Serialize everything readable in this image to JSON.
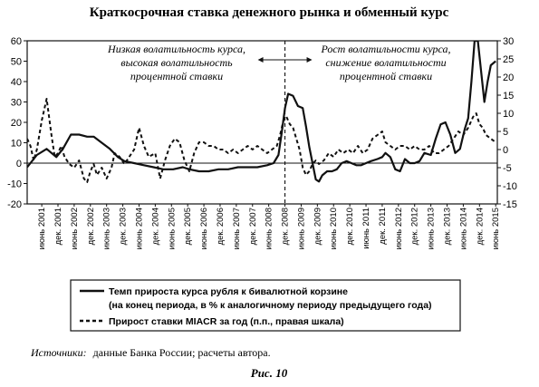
{
  "chart_data": {
    "type": "line",
    "title": "Краткосрочная ставка денежного рынка и обменный курс",
    "y_left": {
      "range": [
        -20,
        60
      ],
      "ticks": [
        "60",
        "50",
        "40",
        "30",
        "20",
        "10",
        "0",
        "-10",
        "-20"
      ]
    },
    "y_right": {
      "range": [
        -15,
        30
      ],
      "ticks": [
        "30",
        "25",
        "20",
        "15",
        "10",
        "5",
        "0",
        "-5",
        "-10",
        "-15"
      ]
    },
    "x_axis": {
      "start": 2001.0,
      "end": 2015.5,
      "tick_labels": [
        "июнь 2001",
        "дек. 2001",
        "июнь 2002",
        "дек. 2002",
        "июнь 2003",
        "дек. 2003",
        "июнь 2004",
        "дек. 2004",
        "июнь 2005",
        "дек. 2005",
        "июнь 2006",
        "дек. 2006",
        "июнь 2007",
        "дек. 2007",
        "июнь 2008",
        "дек. 2008",
        "июнь 2009",
        "дек. 2009",
        "июнь 2010",
        "дек. 2010",
        "июнь 2011",
        "дек. 2011",
        "июнь 2012",
        "дек. 2012",
        "июнь 2013",
        "дек. 2013",
        "июнь 2014",
        "дек. 2014",
        "июнь 2015"
      ]
    },
    "annotations": {
      "left": [
        "Низкая волатильность курса,",
        "высокая волатильность",
        "процентной ставки"
      ],
      "right": [
        "Рост волатильности курса,",
        "снижение волатильности",
        "процентной ставки"
      ],
      "divider_x": 2008.95
    },
    "series": [
      {
        "name_lines": [
          "Темп прироста курса рубля к бивалютной корзине",
          "(на конец периода, в % к аналогичному периоду предыдущего года)"
        ],
        "axis": "left",
        "style": "solid",
        "points": [
          [
            2001.0,
            -2
          ],
          [
            2001.3,
            4
          ],
          [
            2001.6,
            7
          ],
          [
            2001.9,
            3
          ],
          [
            2002.1,
            7
          ],
          [
            2002.35,
            14
          ],
          [
            2002.6,
            14
          ],
          [
            2002.85,
            13
          ],
          [
            2003.05,
            13
          ],
          [
            2003.3,
            10
          ],
          [
            2003.55,
            7
          ],
          [
            2003.8,
            3
          ],
          [
            2004.0,
            1
          ],
          [
            2004.3,
            0
          ],
          [
            2004.6,
            -1
          ],
          [
            2004.9,
            -2
          ],
          [
            2005.2,
            -3
          ],
          [
            2005.5,
            -3
          ],
          [
            2005.8,
            -2
          ],
          [
            2006.0,
            -3
          ],
          [
            2006.3,
            -4
          ],
          [
            2006.6,
            -4
          ],
          [
            2006.9,
            -3
          ],
          [
            2007.2,
            -3
          ],
          [
            2007.5,
            -2
          ],
          [
            2007.8,
            -2
          ],
          [
            2008.1,
            -2
          ],
          [
            2008.4,
            -1
          ],
          [
            2008.6,
            0
          ],
          [
            2008.75,
            4
          ],
          [
            2008.85,
            15
          ],
          [
            2008.95,
            27
          ],
          [
            2009.05,
            34
          ],
          [
            2009.2,
            33
          ],
          [
            2009.35,
            28
          ],
          [
            2009.5,
            27
          ],
          [
            2009.6,
            18
          ],
          [
            2009.7,
            8
          ],
          [
            2009.8,
            0
          ],
          [
            2009.9,
            -8
          ],
          [
            2010.0,
            -9
          ],
          [
            2010.1,
            -6
          ],
          [
            2010.25,
            -4
          ],
          [
            2010.4,
            -4
          ],
          [
            2010.55,
            -3
          ],
          [
            2010.7,
            0
          ],
          [
            2010.85,
            1
          ],
          [
            2011.0,
            0
          ],
          [
            2011.15,
            -1
          ],
          [
            2011.3,
            -1
          ],
          [
            2011.45,
            0
          ],
          [
            2011.6,
            1
          ],
          [
            2011.8,
            2
          ],
          [
            2011.95,
            3
          ],
          [
            2012.05,
            5
          ],
          [
            2012.2,
            3
          ],
          [
            2012.35,
            -3
          ],
          [
            2012.5,
            -4
          ],
          [
            2012.65,
            2
          ],
          [
            2012.8,
            0
          ],
          [
            2012.95,
            0
          ],
          [
            2013.1,
            1
          ],
          [
            2013.25,
            5
          ],
          [
            2013.45,
            4
          ],
          [
            2013.6,
            12
          ],
          [
            2013.75,
            19
          ],
          [
            2013.9,
            20
          ],
          [
            2014.05,
            14
          ],
          [
            2014.2,
            5
          ],
          [
            2014.35,
            7
          ],
          [
            2014.5,
            17
          ],
          [
            2014.6,
            22
          ],
          [
            2014.7,
            40
          ],
          [
            2014.8,
            60
          ],
          [
            2014.9,
            60
          ],
          [
            2015.0,
            45
          ],
          [
            2015.1,
            30
          ],
          [
            2015.2,
            40
          ],
          [
            2015.3,
            48
          ],
          [
            2015.45,
            50
          ]
        ]
      },
      {
        "name": "Прирост ставки MIACR за год (п.п., правая шкала)",
        "axis": "right",
        "style": "dashed",
        "points": [
          [
            2001.0,
            3
          ],
          [
            2001.1,
            1
          ],
          [
            2001.2,
            -3
          ],
          [
            2001.3,
            0
          ],
          [
            2001.45,
            8
          ],
          [
            2001.6,
            14
          ],
          [
            2001.75,
            4
          ],
          [
            2001.85,
            -2
          ],
          [
            2001.95,
            -1
          ],
          [
            2002.05,
            1
          ],
          [
            2002.15,
            -2
          ],
          [
            2002.3,
            -4
          ],
          [
            2002.45,
            -5
          ],
          [
            2002.6,
            -3
          ],
          [
            2002.75,
            -8
          ],
          [
            2002.85,
            -9
          ],
          [
            2002.95,
            -6
          ],
          [
            2003.05,
            -4
          ],
          [
            2003.15,
            -7
          ],
          [
            2003.3,
            -5
          ],
          [
            2003.45,
            -8
          ],
          [
            2003.6,
            -5
          ],
          [
            2003.7,
            -1
          ],
          [
            2003.85,
            -2
          ],
          [
            2004.0,
            -4
          ],
          [
            2004.15,
            -2
          ],
          [
            2004.3,
            0
          ],
          [
            2004.45,
            6
          ],
          [
            2004.6,
            1
          ],
          [
            2004.75,
            -2
          ],
          [
            2004.95,
            -1
          ],
          [
            2005.1,
            -8
          ],
          [
            2005.25,
            -3
          ],
          [
            2005.4,
            1
          ],
          [
            2005.55,
            3
          ],
          [
            2005.7,
            2
          ],
          [
            2005.85,
            -3
          ],
          [
            2006.0,
            -6
          ],
          [
            2006.15,
            -1
          ],
          [
            2006.3,
            2
          ],
          [
            2006.45,
            2
          ],
          [
            2006.6,
            1
          ],
          [
            2006.75,
            1
          ],
          [
            2006.9,
            0
          ],
          [
            2007.05,
            0
          ],
          [
            2007.2,
            -1
          ],
          [
            2007.35,
            0
          ],
          [
            2007.5,
            -1
          ],
          [
            2007.65,
            0
          ],
          [
            2007.8,
            1
          ],
          [
            2007.95,
            0
          ],
          [
            2008.1,
            1
          ],
          [
            2008.25,
            0
          ],
          [
            2008.4,
            -1
          ],
          [
            2008.55,
            0
          ],
          [
            2008.7,
            1
          ],
          [
            2008.8,
            4
          ],
          [
            2008.9,
            8
          ],
          [
            2009.0,
            9
          ],
          [
            2009.1,
            7
          ],
          [
            2009.2,
            6
          ],
          [
            2009.3,
            3
          ],
          [
            2009.4,
            0
          ],
          [
            2009.5,
            -5
          ],
          [
            2009.6,
            -7
          ],
          [
            2009.7,
            -6
          ],
          [
            2009.8,
            -4
          ],
          [
            2009.9,
            -3
          ],
          [
            2010.0,
            -4
          ],
          [
            2010.15,
            -3
          ],
          [
            2010.3,
            -1
          ],
          [
            2010.45,
            -2
          ],
          [
            2010.6,
            0
          ],
          [
            2010.75,
            -1
          ],
          [
            2010.9,
            0
          ],
          [
            2011.05,
            -1
          ],
          [
            2011.2,
            1
          ],
          [
            2011.35,
            -1
          ],
          [
            2011.5,
            0
          ],
          [
            2011.65,
            3
          ],
          [
            2011.8,
            4
          ],
          [
            2011.95,
            5
          ],
          [
            2012.05,
            2
          ],
          [
            2012.2,
            1
          ],
          [
            2012.35,
            0
          ],
          [
            2012.5,
            1
          ],
          [
            2012.65,
            1
          ],
          [
            2012.8,
            0
          ],
          [
            2012.95,
            1
          ],
          [
            2013.1,
            0
          ],
          [
            2013.25,
            0
          ],
          [
            2013.4,
            1
          ],
          [
            2013.55,
            -1
          ],
          [
            2013.7,
            -1
          ],
          [
            2013.85,
            0
          ],
          [
            2014.0,
            1
          ],
          [
            2014.15,
            3
          ],
          [
            2014.3,
            5
          ],
          [
            2014.45,
            4
          ],
          [
            2014.6,
            6
          ],
          [
            2014.75,
            9
          ],
          [
            2014.85,
            10
          ],
          [
            2014.95,
            7
          ],
          [
            2015.05,
            6
          ],
          [
            2015.15,
            4
          ],
          [
            2015.3,
            3
          ],
          [
            2015.45,
            2
          ]
        ]
      }
    ],
    "source_label": "Источники:",
    "source_text": "данные Банка России; расчеты автора.",
    "figure_label": "Рис. 10"
  }
}
